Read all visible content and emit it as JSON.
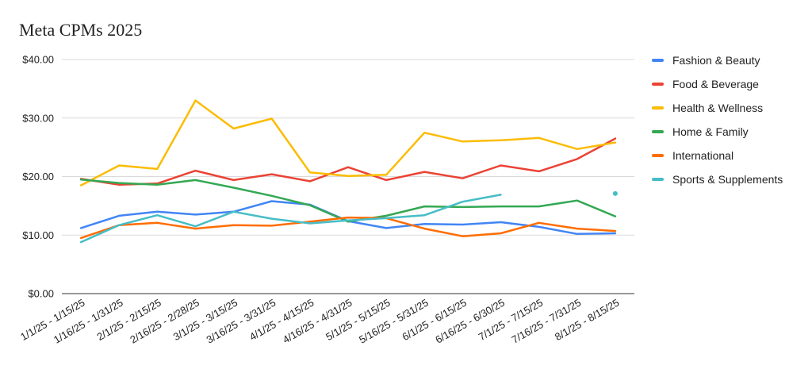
{
  "chart_data": {
    "type": "line",
    "title": "Meta CPMs 2025",
    "xlabel": "",
    "ylabel": "",
    "ylim": [
      0,
      40
    ],
    "y_ticks": [
      "$0.00",
      "$10.00",
      "$20.00",
      "$30.00",
      "$40.00"
    ],
    "y_tick_values": [
      0,
      10,
      20,
      30,
      40
    ],
    "grid": true,
    "legend_position": "right",
    "categories": [
      "1/1/25 - 1/15/25",
      "1/16/25 - 1/31/25",
      "2/1/25 - 2/15/25",
      "2/16/25 - 2/28/25",
      "3/1/25 - 3/15/25",
      "3/16/25 - 3/31/25",
      "4/1/25 - 4/15/25",
      "4/16/25 - 4/31/25",
      "5/1/25 - 5/15/25",
      "5/16/25 - 5/31/25",
      "6/1/25 - 6/15/25",
      "6/16/25 - 6/30/25",
      "7/1/25 - 7/15/25",
      "7/16/25 - 7/31/25",
      "8/1/25 - 8/15/25"
    ],
    "series": [
      {
        "name": "Fashion & Beauty",
        "color": "#4285F4",
        "values": [
          11.2,
          13.3,
          14.0,
          13.5,
          14.0,
          15.8,
          15.2,
          12.4,
          11.2,
          11.9,
          11.8,
          12.2,
          11.4,
          10.2,
          10.3
        ]
      },
      {
        "name": "Food & Beverage",
        "color": "#EA4335",
        "values": [
          19.6,
          18.6,
          18.8,
          21.0,
          19.4,
          20.4,
          19.2,
          21.6,
          19.4,
          20.8,
          19.7,
          21.9,
          20.9,
          23.0,
          26.5
        ]
      },
      {
        "name": "Health & Wellness",
        "color": "#FBBC04",
        "values": [
          18.5,
          21.9,
          21.3,
          33.0,
          28.2,
          29.9,
          20.7,
          20.1,
          20.3,
          27.5,
          26.0,
          26.2,
          26.6,
          24.7,
          25.8
        ]
      },
      {
        "name": "Home & Family",
        "color": "#34A853",
        "values": [
          19.5,
          18.9,
          18.6,
          19.4,
          18.1,
          16.7,
          15.1,
          12.3,
          13.3,
          14.9,
          14.8,
          14.9,
          14.9,
          15.9,
          13.2
        ]
      },
      {
        "name": "International",
        "color": "#FF6D01",
        "values": [
          9.5,
          11.7,
          12.1,
          11.1,
          11.7,
          11.6,
          12.3,
          13.0,
          12.9,
          11.1,
          9.8,
          10.3,
          12.1,
          11.1,
          10.7
        ]
      },
      {
        "name": "Sports & Supplements",
        "color": "#46BDC6",
        "values": [
          8.8,
          11.7,
          13.4,
          11.5,
          14.0,
          12.8,
          12.0,
          12.5,
          12.9,
          13.4,
          15.7,
          16.9,
          null,
          null,
          17.1
        ]
      }
    ]
  }
}
